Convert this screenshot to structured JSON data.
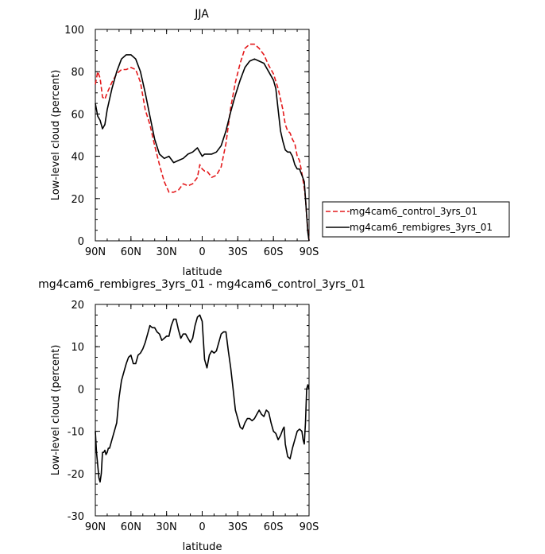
{
  "chart_data": [
    {
      "type": "line",
      "title": "JJA",
      "xlabel": "latitude",
      "ylabel": "Low-level cloud (percent)",
      "xlim": [
        90,
        -90
      ],
      "ylim": [
        0,
        100
      ],
      "xticks": [
        90,
        60,
        30,
        0,
        -30,
        -60,
        -90
      ],
      "xtick_labels": [
        "90N",
        "60N",
        "30N",
        "0",
        "30S",
        "60S",
        "90S"
      ],
      "yticks": [
        0,
        20,
        40,
        60,
        80,
        100
      ],
      "ytick_labels": [
        "0",
        "20",
        "40",
        "60",
        "80",
        "100"
      ],
      "legend_position": "right",
      "series": [
        {
          "name": "mg4cam6_control_3yrs_01",
          "color": "#e41a1c",
          "dash": "dashed",
          "x": [
            90,
            88,
            86,
            84,
            82,
            80,
            76,
            72,
            68,
            64,
            60,
            56,
            52,
            48,
            44,
            40,
            36,
            32,
            28,
            24,
            20,
            16,
            12,
            8,
            4,
            2,
            0,
            -2,
            -4,
            -8,
            -12,
            -16,
            -20,
            -24,
            -28,
            -32,
            -36,
            -40,
            -44,
            -48,
            -52,
            -56,
            -60,
            -64,
            -68,
            -70,
            -72,
            -74,
            -76,
            -78,
            -80,
            -82,
            -84,
            -86,
            -87,
            -88,
            -89,
            -90
          ],
          "y": [
            74,
            80,
            77,
            68,
            67,
            70,
            75,
            79,
            81,
            81,
            82,
            81,
            75,
            62,
            55,
            45,
            36,
            28,
            23,
            23,
            24,
            27,
            26,
            27,
            30,
            36,
            34,
            33,
            33,
            30,
            31,
            35,
            46,
            63,
            75,
            84,
            91,
            93,
            93,
            91,
            88,
            83,
            79,
            72,
            62,
            55,
            52,
            51,
            48,
            46,
            40,
            38,
            32,
            25,
            20,
            12,
            5,
            0
          ]
        },
        {
          "name": "mg4cam6_rembigres_3yrs_01",
          "color": "#000000",
          "dash": "solid",
          "x": [
            90,
            88,
            86,
            84,
            82,
            80,
            76,
            72,
            68,
            64,
            62,
            60,
            56,
            52,
            48,
            44,
            40,
            36,
            32,
            28,
            24,
            20,
            16,
            12,
            8,
            4,
            2,
            0,
            -2,
            -4,
            -8,
            -12,
            -16,
            -20,
            -24,
            -28,
            -32,
            -36,
            -40,
            -44,
            -48,
            -52,
            -56,
            -60,
            -62,
            -64,
            -66,
            -68,
            -70,
            -72,
            -74,
            -76,
            -78,
            -80,
            -82,
            -84,
            -86,
            -88,
            -89,
            -90
          ],
          "y": [
            65,
            59,
            57,
            53,
            55,
            62,
            72,
            80,
            86,
            88,
            88,
            88,
            86,
            80,
            70,
            59,
            48,
            41,
            39,
            40,
            37,
            38,
            39,
            41,
            42,
            44,
            42,
            40,
            41,
            41,
            41,
            42,
            45,
            52,
            61,
            69,
            76,
            82,
            85,
            86,
            85,
            84,
            80,
            76,
            72,
            62,
            52,
            47,
            43,
            42,
            42,
            40,
            36,
            34,
            34,
            31,
            28,
            12,
            4,
            0
          ]
        }
      ]
    },
    {
      "type": "line",
      "title": "mg4cam6_rembigres_3yrs_01 - mg4cam6_control_3yrs_01",
      "xlabel": "latitude",
      "ylabel": "Low-level cloud (percent)",
      "xlim": [
        90,
        -90
      ],
      "ylim": [
        -30,
        20
      ],
      "xticks": [
        90,
        60,
        30,
        0,
        -30,
        -60,
        -90
      ],
      "xtick_labels": [
        "90N",
        "60N",
        "30N",
        "0",
        "30S",
        "60S",
        "90S"
      ],
      "yticks": [
        -30,
        -20,
        -10,
        0,
        10,
        20
      ],
      "ytick_labels": [
        "-30",
        "-20",
        "-10",
        "0",
        "10",
        "20"
      ],
      "series": [
        {
          "color": "#000000",
          "dash": "solid",
          "x": [
            90,
            89,
            88,
            87,
            86,
            85,
            84,
            83,
            82,
            81,
            80,
            79,
            78,
            76,
            74,
            72,
            70,
            68,
            66,
            64,
            62,
            60,
            58,
            56,
            54,
            52,
            50,
            48,
            46,
            44,
            42,
            40,
            38,
            36,
            34,
            32,
            30,
            28,
            26,
            24,
            22,
            20,
            18,
            16,
            14,
            12,
            10,
            8,
            6,
            4,
            2,
            0,
            -2,
            -4,
            -6,
            -8,
            -10,
            -12,
            -14,
            -16,
            -18,
            -20,
            -22,
            -24,
            -26,
            -28,
            -30,
            -32,
            -34,
            -36,
            -38,
            -40,
            -42,
            -44,
            -46,
            -48,
            -50,
            -52,
            -54,
            -56,
            -58,
            -60,
            -62,
            -64,
            -66,
            -68,
            -69,
            -70,
            -72,
            -74,
            -76,
            -78,
            -80,
            -82,
            -84,
            -85,
            -86,
            -87,
            -88,
            -89,
            -90
          ],
          "y": [
            -10,
            -15,
            -18,
            -21,
            -22,
            -20,
            -15,
            -15,
            -14.5,
            -15.5,
            -15,
            -14,
            -14,
            -12,
            -10,
            -8,
            -2,
            2,
            4,
            6,
            7.5,
            8,
            6,
            6,
            8,
            8.5,
            9.5,
            11,
            13,
            15,
            14.5,
            14.5,
            13.5,
            13,
            11.5,
            12,
            12.5,
            12.5,
            15,
            16.5,
            16.5,
            14,
            12,
            13,
            13,
            12,
            11,
            12,
            15,
            17,
            17.5,
            16,
            7,
            5,
            8,
            9,
            8.5,
            9,
            11,
            13,
            13.5,
            13.5,
            9,
            5,
            0,
            -5,
            -7,
            -9,
            -9.5,
            -8,
            -7,
            -7,
            -7.5,
            -7,
            -6,
            -5,
            -6,
            -6.5,
            -5,
            -5.5,
            -8,
            -10,
            -10.5,
            -12,
            -11,
            -9.5,
            -9,
            -13,
            -16,
            -16.5,
            -14,
            -12,
            -10,
            -9.5,
            -10,
            -12,
            -13,
            -8,
            0,
            1,
            0
          ]
        }
      ]
    }
  ]
}
